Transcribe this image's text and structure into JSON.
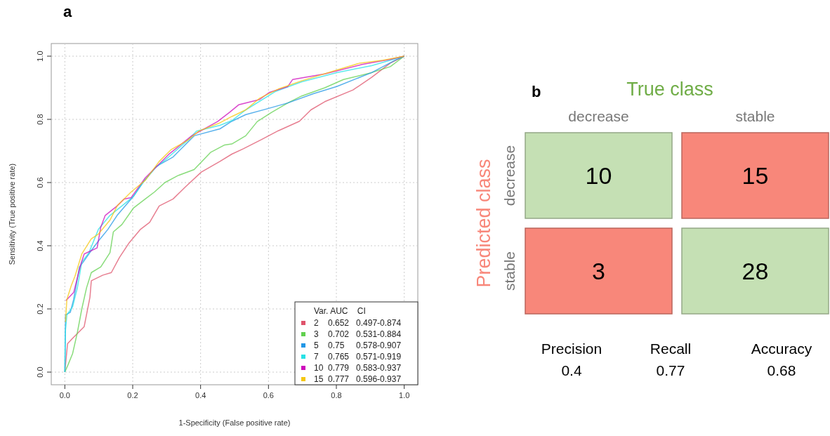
{
  "chart_data": [
    {
      "type": "line",
      "title": "a",
      "xlabel": "1-Specificity (False positive rate)",
      "ylabel": "Sensitivity (True positive rate)",
      "xlim": [
        -0.04,
        1.04
      ],
      "ylim": [
        -0.04,
        1.04
      ],
      "xticks": [
        {
          "value": 0,
          "label": "0.0"
        },
        {
          "value": 0.2,
          "label": "0.2"
        },
        {
          "value": 0.4,
          "label": "0.4"
        },
        {
          "value": 0.6,
          "label": "0.6"
        },
        {
          "value": 0.8,
          "label": "0.8"
        },
        {
          "value": 1,
          "label": "1.0"
        }
      ],
      "yticks": [
        {
          "value": 0,
          "label": "0.0"
        },
        {
          "value": 0.2,
          "label": "0.2"
        },
        {
          "value": 0.4,
          "label": "0.4"
        },
        {
          "value": 0.6,
          "label": "0.6"
        },
        {
          "value": 0.8,
          "label": "0.8"
        },
        {
          "value": 1,
          "label": "1.0"
        }
      ],
      "grid": true,
      "legend": "bottom right",
      "legend_title": "Var. AUC    CI",
      "series": [
        {
          "name": "2    0.652   0.497-0.874",
          "color": "#df536b",
          "x": [
            0,
            0.008,
            0.023,
            0.057,
            0.074,
            0.078,
            0.112,
            0.137,
            0.161,
            0.188,
            0.223,
            0.25,
            0.278,
            0.319,
            0.354,
            0.402,
            0.457,
            0.492,
            0.526,
            0.581,
            0.629,
            0.691,
            0.725,
            0.766,
            0.849,
            0.904,
            0.959,
            1
          ],
          "values": [
            0,
            0.09,
            0.107,
            0.144,
            0.237,
            0.289,
            0.307,
            0.315,
            0.363,
            0.407,
            0.452,
            0.474,
            0.526,
            0.548,
            0.585,
            0.633,
            0.667,
            0.69,
            0.707,
            0.737,
            0.764,
            0.794,
            0.83,
            0.856,
            0.893,
            0.933,
            0.978,
            1
          ]
        },
        {
          "name": "3    0.702   0.531-0.884",
          "color": "#61d04f",
          "x": [
            0,
            0.009,
            0.023,
            0.037,
            0.05,
            0.064,
            0.078,
            0.106,
            0.133,
            0.143,
            0.168,
            0.202,
            0.237,
            0.264,
            0.295,
            0.333,
            0.381,
            0.43,
            0.471,
            0.492,
            0.533,
            0.567,
            0.609,
            0.657,
            0.698,
            0.766,
            0.821,
            0.904,
            0.959,
            1
          ],
          "values": [
            0,
            0.022,
            0.059,
            0.126,
            0.2,
            0.267,
            0.315,
            0.333,
            0.378,
            0.444,
            0.467,
            0.519,
            0.548,
            0.57,
            0.6,
            0.622,
            0.641,
            0.696,
            0.719,
            0.722,
            0.748,
            0.793,
            0.822,
            0.852,
            0.874,
            0.9,
            0.926,
            0.948,
            0.967,
            1
          ]
        },
        {
          "name": "5    0.75     0.578-0.907",
          "color": "#2297e6",
          "x": [
            0,
            0.002,
            0.016,
            0.026,
            0.043,
            0.054,
            0.078,
            0.099,
            0.127,
            0.154,
            0.202,
            0.23,
            0.271,
            0.319,
            0.381,
            0.457,
            0.492,
            0.533,
            0.595,
            0.657,
            0.732,
            0.801,
            0.904,
            0.973,
            1
          ],
          "values": [
            0,
            0.181,
            0.189,
            0.23,
            0.333,
            0.348,
            0.385,
            0.415,
            0.452,
            0.496,
            0.556,
            0.6,
            0.652,
            0.681,
            0.748,
            0.77,
            0.794,
            0.815,
            0.833,
            0.852,
            0.881,
            0.904,
            0.948,
            0.987,
            1
          ]
        },
        {
          "name": "7    0.765   0.571-0.919",
          "color": "#28e2e5",
          "x": [
            0,
            0.002,
            0.006,
            0.023,
            0.037,
            0.05,
            0.071,
            0.099,
            0.133,
            0.168,
            0.202,
            0.23,
            0.264,
            0.306,
            0.361,
            0.388,
            0.457,
            0.492,
            0.533,
            0.622,
            0.698,
            0.801,
            0.904,
            1
          ],
          "values": [
            0,
            0.133,
            0.181,
            0.207,
            0.267,
            0.348,
            0.378,
            0.452,
            0.496,
            0.526,
            0.556,
            0.6,
            0.644,
            0.681,
            0.733,
            0.763,
            0.781,
            0.796,
            0.83,
            0.889,
            0.919,
            0.948,
            0.97,
            1
          ]
        },
        {
          "name": "10  0.779   0.583-0.937",
          "color": "#cd0bbc",
          "x": [
            0.003,
            0.026,
            0.047,
            0.057,
            0.095,
            0.106,
            0.119,
            0.154,
            0.175,
            0.195,
            0.237,
            0.264,
            0.306,
            0.374,
            0.45,
            0.485,
            0.512,
            0.574,
            0.602,
            0.657,
            0.671,
            0.766,
            0.876,
            0.959,
            1
          ],
          "values": [
            0.226,
            0.252,
            0.341,
            0.374,
            0.393,
            0.459,
            0.496,
            0.526,
            0.548,
            0.552,
            0.615,
            0.644,
            0.689,
            0.748,
            0.793,
            0.822,
            0.846,
            0.863,
            0.885,
            0.904,
            0.926,
            0.944,
            0.974,
            0.99,
            1
          ]
        },
        {
          "name": "15  0.777   0.596-0.937",
          "color": "#f5c710",
          "x": [
            0.002,
            0.006,
            0.019,
            0.03,
            0.05,
            0.078,
            0.099,
            0.133,
            0.154,
            0.195,
            0.237,
            0.278,
            0.313,
            0.361,
            0.395,
            0.457,
            0.492,
            0.533,
            0.574,
            0.629,
            0.698,
            0.801,
            0.869,
            0.938,
            1
          ],
          "values": [
            0.159,
            0.23,
            0.274,
            0.304,
            0.374,
            0.422,
            0.437,
            0.481,
            0.526,
            0.57,
            0.607,
            0.667,
            0.704,
            0.733,
            0.763,
            0.789,
            0.809,
            0.83,
            0.867,
            0.896,
            0.922,
            0.956,
            0.978,
            0.987,
            1
          ]
        }
      ]
    },
    {
      "type": "heatmap",
      "title": "b",
      "xlabel": "True class",
      "ylabel": "Predicted class",
      "categories": [
        "decrease",
        "stable"
      ],
      "y_categories": [
        "decrease",
        "stable"
      ],
      "cells": [
        [
          10,
          15
        ],
        [
          3,
          28
        ]
      ],
      "data_labels": true,
      "colors": [
        "#c5e0b4",
        "#f8877a",
        "#f8877a",
        "#c5e0b4"
      ],
      "annotations": [
        "Precision\n0.4",
        "Recall\n0.77",
        "Accuracy\n0.68"
      ]
    }
  ]
}
